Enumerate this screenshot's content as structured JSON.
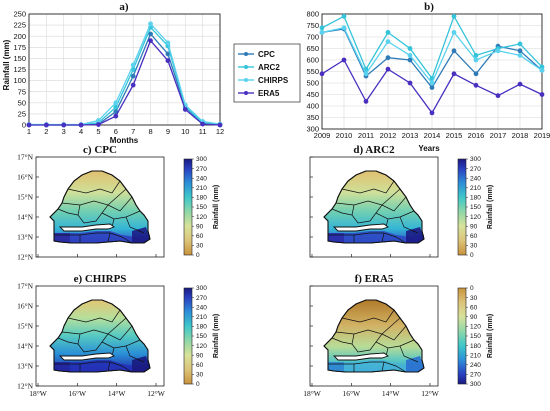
{
  "colors": {
    "CPC": "#2e7bb8",
    "ARC2": "#34c3d9",
    "CHIRPS": "#5ad2ee",
    "ERA5": "#4a2fc0"
  },
  "chart_data": [
    {
      "type": "line",
      "title": "a)",
      "xlabel": "Months",
      "ylabel": "Rainfall (mm)",
      "x": [
        1,
        2,
        3,
        4,
        5,
        6,
        7,
        8,
        9,
        10,
        11,
        12
      ],
      "xlim": [
        1,
        12
      ],
      "ylim": [
        0,
        250
      ],
      "yticks": [
        0,
        25,
        50,
        75,
        100,
        125,
        150,
        175,
        200,
        225,
        250
      ],
      "grid": true,
      "legend_position": "right",
      "series": [
        {
          "name": "CPC",
          "values": [
            1,
            0,
            0,
            0,
            2,
            30,
            110,
            205,
            160,
            40,
            3,
            1
          ]
        },
        {
          "name": "ARC2",
          "values": [
            0,
            0,
            0,
            0,
            5,
            40,
            125,
            220,
            178,
            42,
            5,
            0
          ]
        },
        {
          "name": "CHIRPS",
          "values": [
            1,
            1,
            1,
            1,
            10,
            50,
            135,
            228,
            185,
            45,
            8,
            2
          ]
        },
        {
          "name": "ERA5",
          "values": [
            0,
            0,
            0,
            0,
            1,
            20,
            90,
            190,
            145,
            35,
            2,
            0
          ]
        }
      ]
    },
    {
      "type": "line",
      "title": "b)",
      "xlabel": "Years",
      "ylabel": "",
      "x": [
        2009,
        2010,
        2011,
        2012,
        2013,
        2014,
        2015,
        2016,
        2017,
        2018,
        2019
      ],
      "xlim": [
        2009,
        2019
      ],
      "ylim": [
        300,
        800
      ],
      "yticks": [
        300,
        350,
        400,
        450,
        500,
        550,
        600,
        650,
        700,
        750,
        800
      ],
      "grid": true,
      "series": [
        {
          "name": "CPC",
          "values": [
            720,
            735,
            530,
            610,
            600,
            480,
            640,
            540,
            660,
            640,
            555
          ]
        },
        {
          "name": "ARC2",
          "values": [
            740,
            790,
            560,
            720,
            650,
            520,
            790,
            620,
            650,
            670,
            570
          ]
        },
        {
          "name": "CHIRPS",
          "values": [
            720,
            740,
            540,
            680,
            620,
            500,
            720,
            600,
            640,
            620,
            555
          ]
        },
        {
          "name": "ERA5",
          "values": [
            540,
            600,
            420,
            560,
            500,
            370,
            540,
            490,
            445,
            495,
            450
          ]
        }
      ]
    },
    {
      "type": "heatmap",
      "title": "c) CPC",
      "colorbar_label": "Rainfall (mm)",
      "colorbar_ticks": [
        0,
        30,
        60,
        90,
        120,
        150,
        180,
        210,
        240,
        270,
        300
      ],
      "colorbar_reversed": false,
      "latitude_ticks": [
        "12°N",
        "13°N",
        "14°N",
        "15°N",
        "16°N",
        "17°N"
      ]
    },
    {
      "type": "heatmap",
      "title": "d) ARC2",
      "colorbar_label": "Rainfall (mm)",
      "colorbar_ticks": [
        0,
        30,
        60,
        90,
        120,
        150,
        180,
        210,
        240,
        270,
        300
      ],
      "colorbar_reversed": false
    },
    {
      "type": "heatmap",
      "title": "e) CHIRPS",
      "colorbar_label": "Rainfall (mm)",
      "colorbar_ticks": [
        0,
        30,
        60,
        90,
        120,
        150,
        180,
        210,
        240,
        270,
        300
      ],
      "colorbar_reversed": false,
      "latitude_ticks": [
        "12°N",
        "13°N",
        "14°N",
        "15°N",
        "16°N",
        "17°N"
      ],
      "longitude_ticks": [
        "18°W",
        "16°W",
        "14°W",
        "12°W"
      ]
    },
    {
      "type": "heatmap",
      "title": "f) ERA5",
      "colorbar_label": "Rainfall (mm)",
      "colorbar_ticks": [
        0,
        30,
        60,
        90,
        120,
        150,
        180,
        210,
        240,
        270,
        300
      ],
      "colorbar_reversed": true,
      "longitude_ticks": [
        "18°W",
        "16°W",
        "14°W",
        "12°W"
      ]
    }
  ]
}
